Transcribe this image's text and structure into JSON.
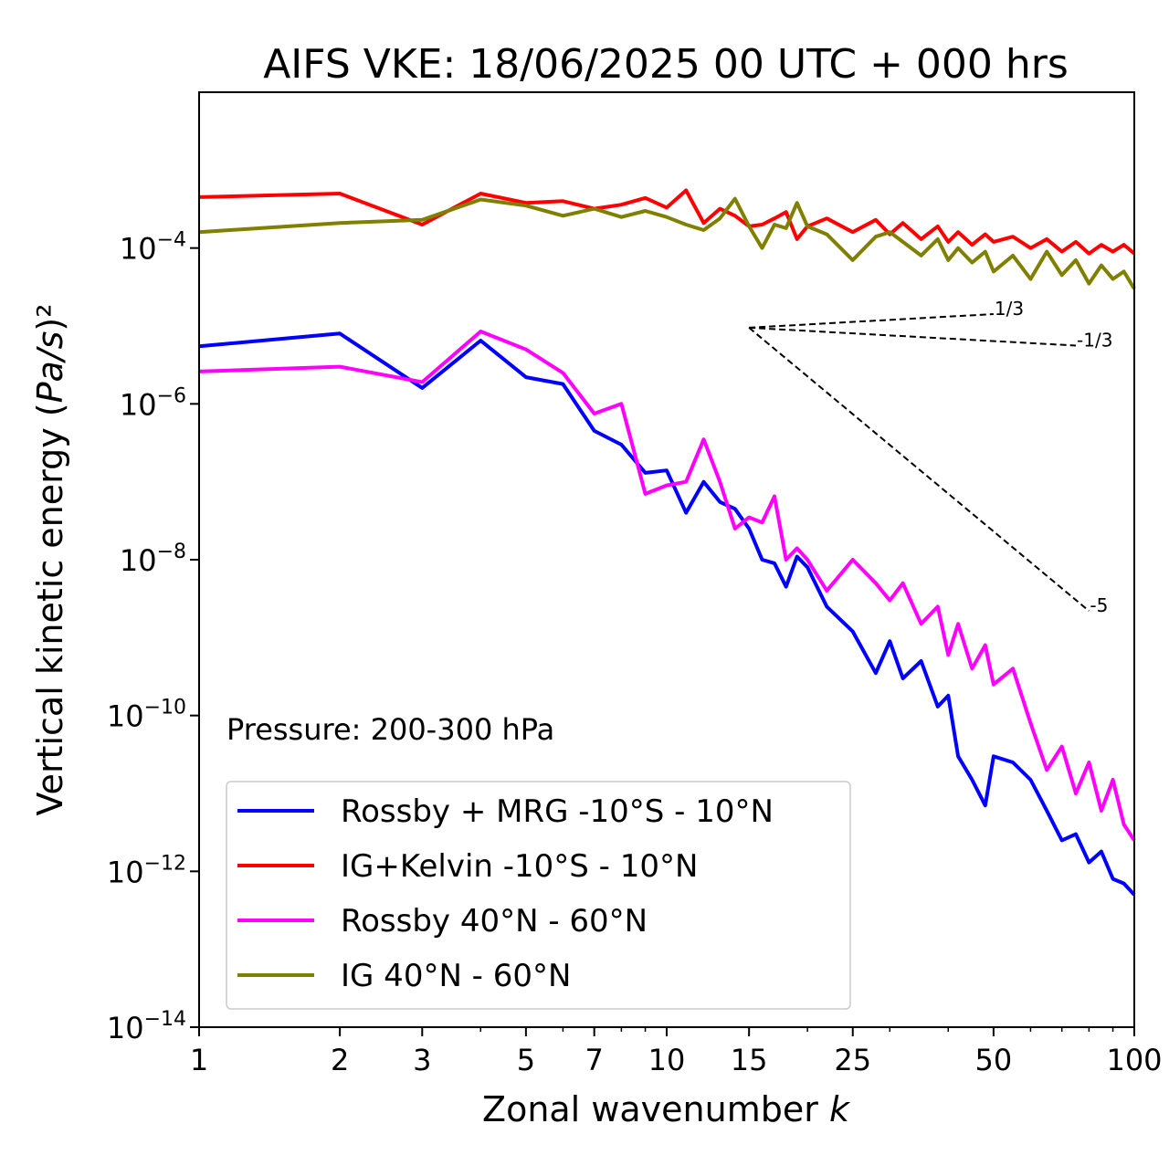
{
  "chart_data": {
    "type": "line",
    "title": "AIFS VKE: 18/06/2025 00 UTC + 000 hrs",
    "xlabel": "Zonal wavenumber k",
    "ylabel": "Vertical kinetic energy (Pa/s)²",
    "xscale": "log",
    "yscale": "log",
    "xlim": [
      1,
      100
    ],
    "ylim": [
      1e-14,
      0.01
    ],
    "xticks": [
      1,
      2,
      3,
      5,
      7,
      10,
      15,
      25,
      50,
      100
    ],
    "xtick_labels": [
      "1",
      "2",
      "3",
      "5",
      "7",
      "10",
      "15",
      "25",
      "50",
      "100"
    ],
    "yticks": [
      -14,
      -12,
      -10,
      -8,
      -6,
      -4
    ],
    "annotation": "Pressure: 200-300 hPa",
    "legend_position": "lower-left",
    "series": [
      {
        "name": "Rossby + MRG -10°S - 10°N",
        "color": "#0000ff",
        "x": [
          1,
          2,
          3,
          4,
          5,
          6,
          7,
          8,
          9,
          10,
          11,
          12,
          13,
          14,
          15,
          16,
          17,
          18,
          19,
          20,
          22,
          25,
          28,
          30,
          32,
          35,
          38,
          40,
          42,
          45,
          48,
          50,
          55,
          60,
          65,
          70,
          75,
          80,
          85,
          90,
          95,
          100
        ],
        "y": [
          5.5e-06,
          8e-06,
          1.6e-06,
          6.5e-06,
          2.2e-06,
          1.8e-06,
          4.5e-07,
          3e-07,
          1.3e-07,
          1.4e-07,
          4e-08,
          1e-07,
          5.5e-08,
          4.5e-08,
          2.5e-08,
          1e-08,
          9e-09,
          4.5e-09,
          1.1e-08,
          8e-09,
          2.5e-09,
          1.2e-09,
          3.5e-10,
          9e-10,
          3e-10,
          5e-10,
          1.3e-10,
          1.8e-10,
          3e-11,
          1.5e-11,
          7e-12,
          3e-11,
          2.5e-11,
          1.5e-11,
          6e-12,
          2.5e-12,
          3e-12,
          1.3e-12,
          1.8e-12,
          8e-13,
          7e-13,
          5e-13
        ]
      },
      {
        "name": "IG+Kelvin -10°S - 10°N",
        "color": "#ff0000",
        "x": [
          1,
          2,
          3,
          4,
          5,
          6,
          7,
          8,
          9,
          10,
          11,
          12,
          13,
          14,
          15,
          16,
          17,
          18,
          19,
          20,
          22,
          25,
          28,
          30,
          32,
          35,
          38,
          40,
          42,
          45,
          48,
          50,
          55,
          60,
          65,
          70,
          75,
          80,
          85,
          90,
          95,
          100
        ],
        "y": [
          0.00045,
          0.0005,
          0.0002,
          0.0005,
          0.00038,
          0.0004,
          0.00032,
          0.00036,
          0.00044,
          0.00033,
          0.00055,
          0.00021,
          0.00032,
          0.00026,
          0.00019,
          0.0002,
          0.00024,
          0.00029,
          0.00013,
          0.00019,
          0.00024,
          0.00016,
          0.00023,
          0.00015,
          0.00021,
          0.00013,
          0.00019,
          0.00012,
          0.00016,
          0.00011,
          0.00015,
          0.00012,
          0.00014,
          0.0001,
          0.00013,
          9e-05,
          0.00012,
          8.5e-05,
          0.00011,
          9e-05,
          0.00011,
          8.5e-05
        ]
      },
      {
        "name": "Rossby 40°N - 60°N",
        "color": "#ff00ff",
        "x": [
          1,
          2,
          3,
          4,
          5,
          6,
          7,
          8,
          9,
          10,
          11,
          12,
          13,
          14,
          15,
          16,
          17,
          18,
          19,
          20,
          22,
          25,
          28,
          30,
          32,
          35,
          38,
          40,
          42,
          45,
          48,
          50,
          55,
          60,
          65,
          70,
          75,
          80,
          85,
          90,
          95,
          100
        ],
        "y": [
          2.6e-06,
          3e-06,
          1.9e-06,
          8.5e-06,
          5e-06,
          2.5e-06,
          7.5e-07,
          1e-06,
          7e-08,
          9e-08,
          1e-07,
          3.5e-07,
          1e-07,
          2.5e-08,
          3.5e-08,
          3e-08,
          6.5e-08,
          1e-08,
          1.4e-08,
          1e-08,
          4e-09,
          1e-08,
          5e-09,
          3e-09,
          5e-09,
          1.5e-09,
          2.5e-09,
          6e-10,
          1.5e-09,
          4e-10,
          8e-10,
          2.5e-10,
          4e-10,
          8e-11,
          2e-11,
          4e-11,
          1e-11,
          2.5e-11,
          6e-12,
          1.5e-11,
          4e-12,
          2.5e-12
        ]
      },
      {
        "name": "IG 40°N - 60°N",
        "color": "#808000",
        "x": [
          1,
          2,
          3,
          4,
          5,
          6,
          7,
          8,
          9,
          10,
          11,
          12,
          13,
          14,
          15,
          16,
          17,
          18,
          19,
          20,
          22,
          25,
          28,
          30,
          32,
          35,
          38,
          40,
          42,
          45,
          48,
          50,
          55,
          60,
          65,
          70,
          75,
          80,
          85,
          90,
          95,
          100
        ],
        "y": [
          0.00016,
          0.00021,
          0.00023,
          0.00042,
          0.00035,
          0.00026,
          0.00032,
          0.00025,
          0.0003,
          0.00025,
          0.0002,
          0.00017,
          0.00024,
          0.00043,
          0.00019,
          0.0001,
          0.0002,
          0.00018,
          0.00038,
          0.00019,
          0.00015,
          7e-05,
          0.00014,
          0.00016,
          0.00012,
          8e-05,
          0.00013,
          7e-05,
          0.0001,
          6.5e-05,
          9e-05,
          5e-05,
          8e-05,
          4e-05,
          9e-05,
          4.5e-05,
          7e-05,
          3.5e-05,
          6e-05,
          4e-05,
          5e-05,
          3e-05
        ]
      }
    ],
    "reference_slopes": [
      {
        "label": "1/3",
        "x": [
          15,
          50
        ],
        "y": [
          9.5e-06,
          1.42e-05
        ]
      },
      {
        "label": "-1/3",
        "x": [
          15,
          75
        ],
        "y": [
          9.5e-06,
          5.6e-06
        ]
      },
      {
        "label": "-5",
        "x": [
          15,
          80
        ],
        "y": [
          9.5e-06,
          2.2e-09
        ]
      }
    ]
  }
}
